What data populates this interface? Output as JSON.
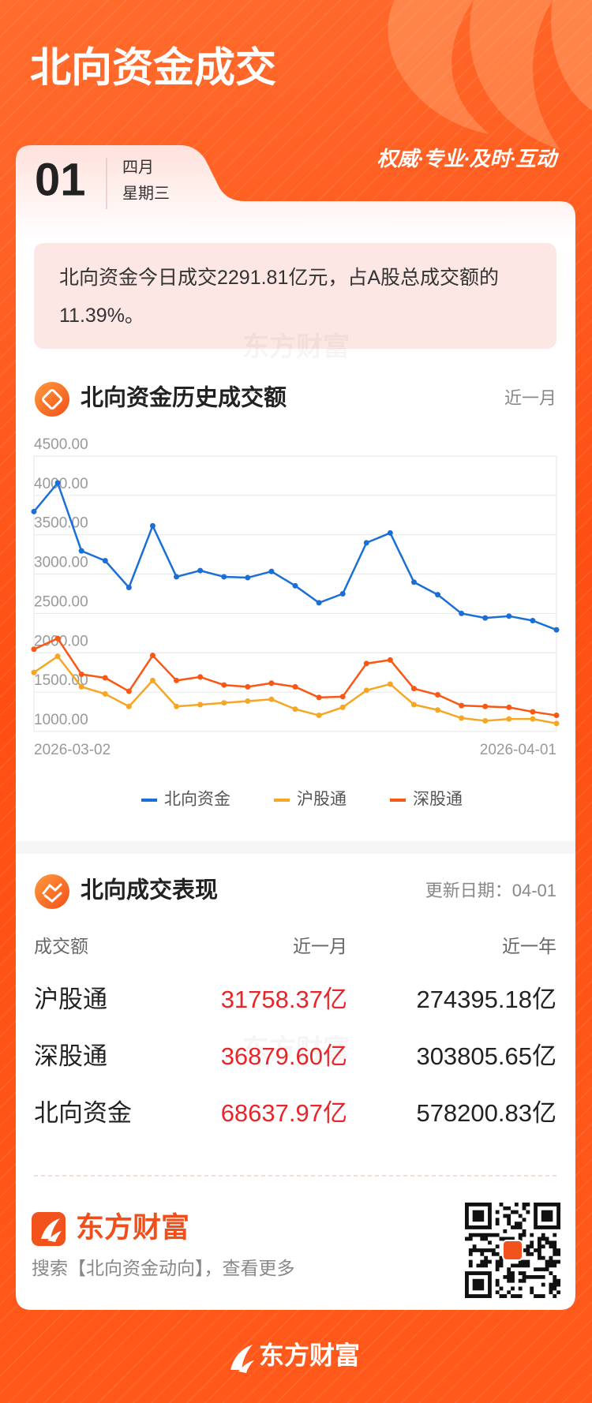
{
  "header": {
    "title": "北向资金成交",
    "day": "01",
    "month": "四月",
    "weekday": "星期三",
    "slogan": "权威·专业·及时·互动"
  },
  "summary": "北向资金今日成交2291.81亿元，占A股总成交额的11.39%。",
  "chart_data": {
    "type": "line",
    "title": "北向资金历史成交额",
    "period": "近一月",
    "categories": [
      "2026-03-02",
      null,
      null,
      null,
      null,
      null,
      null,
      null,
      null,
      null,
      null,
      null,
      null,
      null,
      null,
      null,
      null,
      null,
      null,
      null,
      null,
      null,
      "2026-04-01"
    ],
    "series": [
      {
        "name": "北向资金",
        "color": "#1a6fd6",
        "values": [
          3795,
          4159,
          3295,
          3170,
          2830,
          3614,
          2966,
          3045,
          2966,
          2955,
          3034,
          2852,
          2636,
          2750,
          3398,
          3523,
          2898,
          2739,
          2500,
          2443,
          2466,
          2409,
          2291.81
        ]
      },
      {
        "name": "沪股通",
        "color": "#f5a623",
        "values": [
          1750,
          1955,
          1568,
          1477,
          1318,
          1648,
          1318,
          1341,
          1364,
          1386,
          1409,
          1284,
          1205,
          1307,
          1523,
          1602,
          1341,
          1273,
          1170,
          1136,
          1159,
          1159,
          1102
        ]
      },
      {
        "name": "深股通",
        "color": "#fa5614",
        "values": [
          2045,
          2182,
          1727,
          1682,
          1511,
          1966,
          1648,
          1693,
          1591,
          1568,
          1614,
          1568,
          1432,
          1443,
          1864,
          1909,
          1545,
          1466,
          1330,
          1318,
          1307,
          1250,
          1205
        ]
      }
    ],
    "ylim": [
      1000,
      4500
    ],
    "yticks": [
      {
        "value": 1000,
        "label": "1000.00"
      },
      {
        "value": 1500,
        "label": "1500.00"
      },
      {
        "value": 2000,
        "label": "2000.00"
      },
      {
        "value": 2500,
        "label": "2500.00"
      },
      {
        "value": 3000,
        "label": "3000.00"
      },
      {
        "value": 3500,
        "label": "3500.00"
      },
      {
        "value": 4000,
        "label": "4000.00"
      },
      {
        "value": 4500,
        "label": "4500.00"
      }
    ],
    "grid": true,
    "legend": "bottom"
  },
  "performance": {
    "title": "北向成交表现",
    "updated": "更新日期：04-01",
    "columns": [
      "成交额",
      "近一月",
      "近一年"
    ],
    "rows": [
      [
        "沪股通",
        "31758.37亿",
        "274395.18亿"
      ],
      [
        "深股通",
        "36879.60亿",
        "303805.65亿"
      ],
      [
        "北向资金",
        "68637.97亿",
        "578200.83亿"
      ]
    ]
  },
  "footer": {
    "brand": "东方财富",
    "prompt": "搜索【北向资金动向】，查看更多",
    "watermark": "东方财富"
  }
}
